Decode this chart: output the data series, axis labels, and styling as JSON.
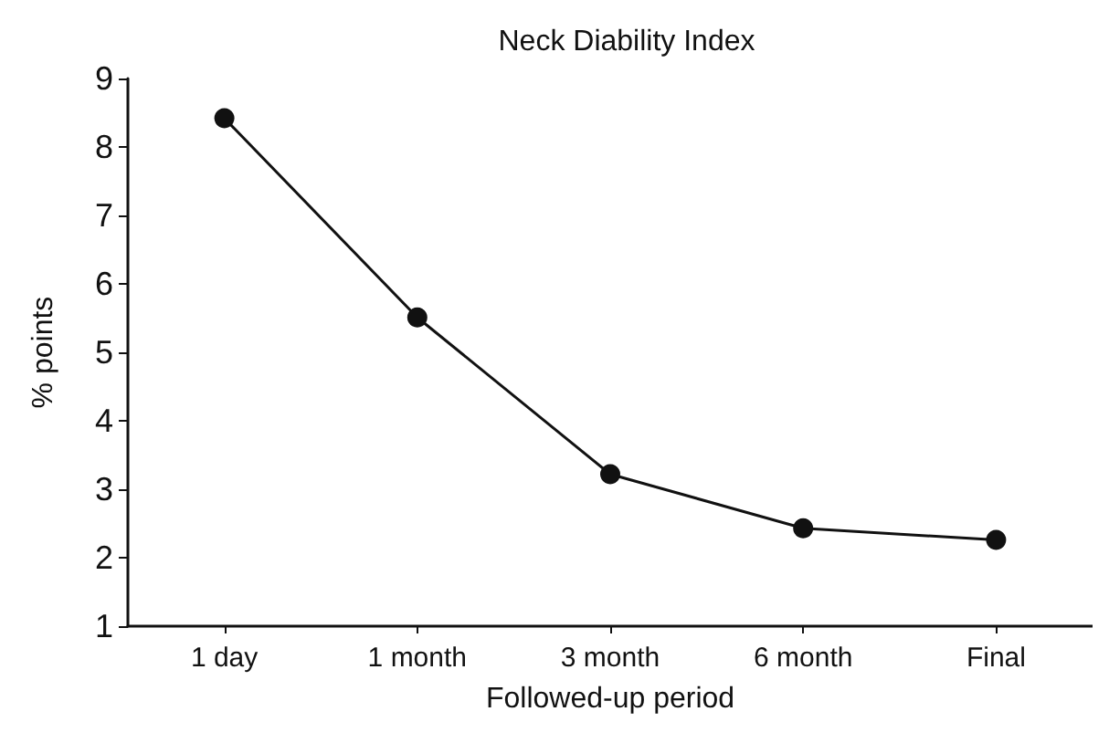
{
  "chart_data": {
    "type": "line",
    "title": "Neck Diability Index",
    "xlabel": "Followed-up period",
    "ylabel": "% points",
    "categories": [
      "1 day",
      "1 month",
      "3 month",
      "6 month",
      "Final"
    ],
    "values": [
      8.42,
      5.51,
      3.22,
      2.43,
      2.26
    ],
    "color": "#111111",
    "ylim": [
      1,
      9
    ],
    "yticks": [
      1,
      2,
      3,
      4,
      5,
      6,
      7,
      8,
      9
    ],
    "grid": false,
    "marker": "circle",
    "line_style": "solid"
  }
}
